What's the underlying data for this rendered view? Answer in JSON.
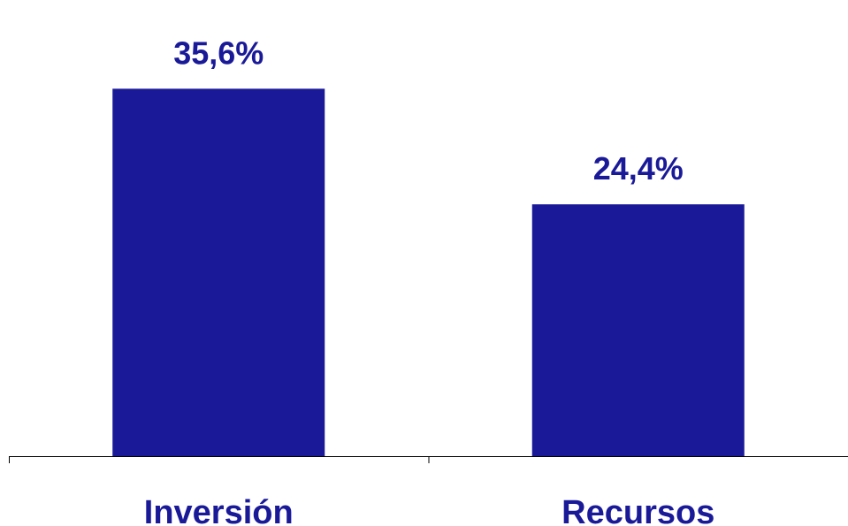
{
  "chart_data": {
    "type": "bar",
    "categories": [
      "Inversión",
      "Recursos"
    ],
    "values": [
      35.6,
      24.4
    ],
    "data_labels": [
      "35,6%",
      "24,4%"
    ],
    "title": "",
    "xlabel": "",
    "ylabel": "",
    "ylim": [
      0,
      40
    ],
    "grid": false,
    "legend": "none",
    "colors": {
      "bar": "#1a1a99",
      "text": "#1a1a99",
      "axis": "#000000"
    }
  }
}
